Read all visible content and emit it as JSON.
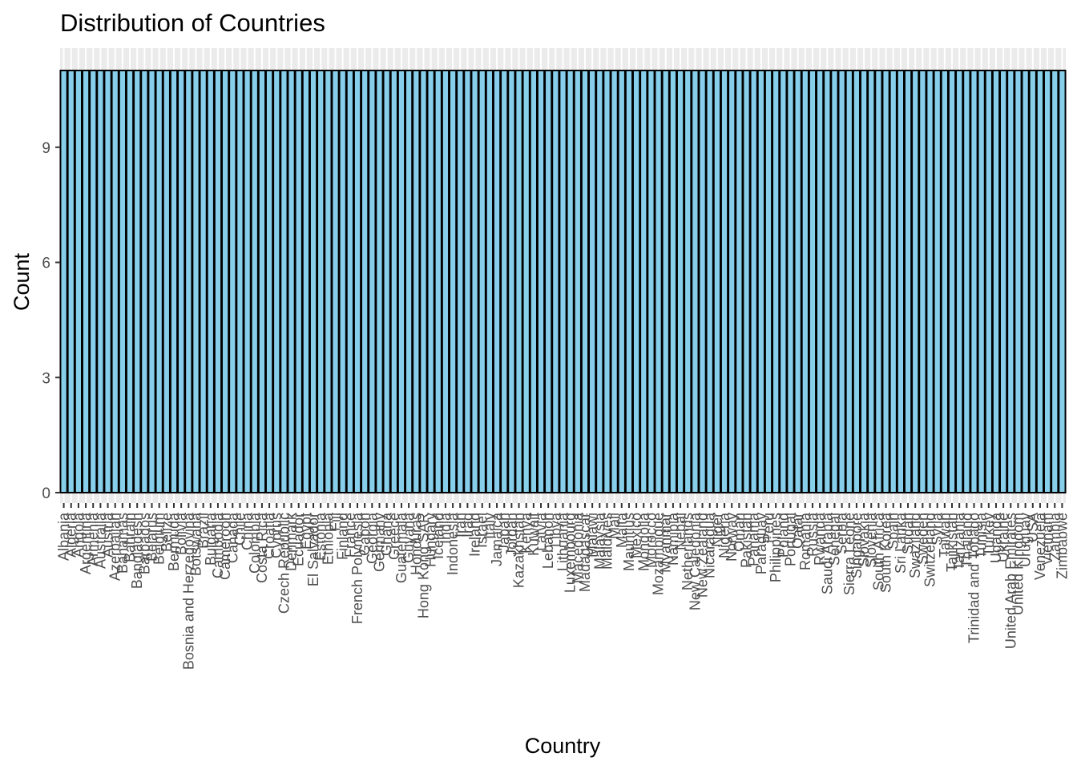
{
  "chart_data": {
    "type": "bar",
    "title": "Distribution of Countries",
    "xlabel": "Country",
    "ylabel": "Count",
    "ylim": [
      0,
      11.55
    ],
    "yticks": [
      0,
      3,
      6,
      9
    ],
    "grid": true,
    "bar_fill": "#87ceeb",
    "bar_stroke": "#000000",
    "panel_background": "#ebebeb",
    "gridline_color": "#ffffff",
    "categories": [
      "Albania",
      "Algeria",
      "Angola",
      "Argentina",
      "Armenia",
      "Australia",
      "Austria",
      "Azerbaijan",
      "Bahamas",
      "Bahrain",
      "Bangladesh",
      "Barbados",
      "Belarus",
      "Belgium",
      "Belize",
      "Bermuda",
      "Bolivia",
      "Bosnia and Herzegovina",
      "Botswana",
      "Brazil",
      "Bulgaria",
      "Cambodia",
      "Cameroon",
      "Canada",
      "Chile",
      "China",
      "Colombia",
      "Costa Rica",
      "Croatia",
      "Cyprus",
      "Czech Republic",
      "Denmark",
      "Ecuador",
      "Egypt",
      "El Salvador",
      "Estonia",
      "Ethiopia",
      "Fiji",
      "Finland",
      "France",
      "French Polynesia",
      "Gabon",
      "Georgia",
      "Germany",
      "Ghana",
      "Greece",
      "Guatemala",
      "Guyana",
      "Honduras",
      "Hong Kong SAR",
      "Hungary",
      "Iceland",
      "India",
      "Indonesia",
      "Iran",
      "Iraq",
      "Ireland",
      "Israel",
      "Italy",
      "Jamaica",
      "Japan",
      "Jordan",
      "Kazakhstan",
      "Kenya",
      "Kuwait",
      "Latvia",
      "Lebanon",
      "Libya",
      "Lithuania",
      "Luxembourg",
      "Macedonia",
      "Madagascar",
      "Malawi",
      "Malaysia",
      "Maldives",
      "Mali",
      "Malta",
      "Mauritius",
      "Mexico",
      "Mongolia",
      "Morocco",
      "Mozambique",
      "Myanmar",
      "Namibia",
      "Nepal",
      "Netherlands",
      "New Caledonia",
      "New Zealand",
      "Nicaragua",
      "Niger",
      "Nigeria",
      "Norway",
      "Oman",
      "Pakistan",
      "Panama",
      "Paraguay",
      "Peru",
      "Philippines",
      "Poland",
      "Portugal",
      "Qatar",
      "Romania",
      "Russia",
      "Rwanda",
      "Saudi Arabia",
      "Senegal",
      "Serbia",
      "Sierra Leone",
      "Singapore",
      "Slovakia",
      "Slovenia",
      "South Africa",
      "South Korea",
      "Spain",
      "Sri Lanka",
      "Sudan",
      "Swaziland",
      "Sweden",
      "Switzerland",
      "Syria",
      "Taiwan",
      "Tajikistan",
      "Tanzania",
      "Thailand",
      "Trinidad and Tobago",
      "Tunisia",
      "Turkey",
      "Uganda",
      "Ukraine",
      "United Arab Emirates",
      "United Kingdom",
      "Uruguay",
      "USA",
      "Venezuela",
      "Vietnam",
      "Zambia",
      "Zimbabwe"
    ],
    "values": [
      11,
      11,
      11,
      11,
      11,
      11,
      11,
      11,
      11,
      11,
      11,
      11,
      11,
      11,
      11,
      11,
      11,
      11,
      11,
      11,
      11,
      11,
      11,
      11,
      11,
      11,
      11,
      11,
      11,
      11,
      11,
      11,
      11,
      11,
      11,
      11,
      11,
      11,
      11,
      11,
      11,
      11,
      11,
      11,
      11,
      11,
      11,
      11,
      11,
      11,
      11,
      11,
      11,
      11,
      11,
      11,
      11,
      11,
      11,
      11,
      11,
      11,
      11,
      11,
      11,
      11,
      11,
      11,
      11,
      11,
      11,
      11,
      11,
      11,
      11,
      11,
      11,
      11,
      11,
      11,
      11,
      11,
      11,
      11,
      11,
      11,
      11,
      11,
      11,
      11,
      11,
      11,
      11,
      11,
      11,
      11,
      11,
      11,
      11,
      11,
      11,
      11,
      11,
      11,
      11,
      11,
      11,
      11,
      11,
      11,
      11,
      11,
      11,
      11,
      11,
      11,
      11,
      11,
      11,
      11,
      11,
      11,
      11,
      11,
      11,
      11,
      11,
      11,
      11,
      11,
      11,
      11,
      11,
      11,
      11,
      11,
      11
    ]
  }
}
